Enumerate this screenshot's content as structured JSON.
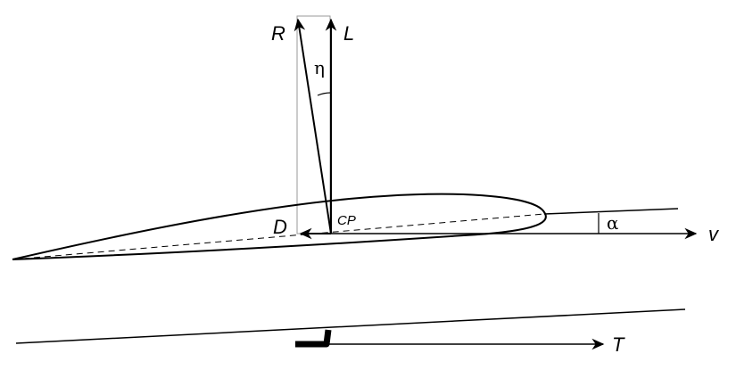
{
  "labels": {
    "resultant": "R",
    "lift": "L",
    "eta": "η",
    "drag": "D",
    "center_of_pressure": "CP",
    "alpha": "α",
    "velocity": "v",
    "thrust": "T"
  },
  "colors": {
    "stroke": "#000000",
    "construction": "#9a9a9a"
  }
}
